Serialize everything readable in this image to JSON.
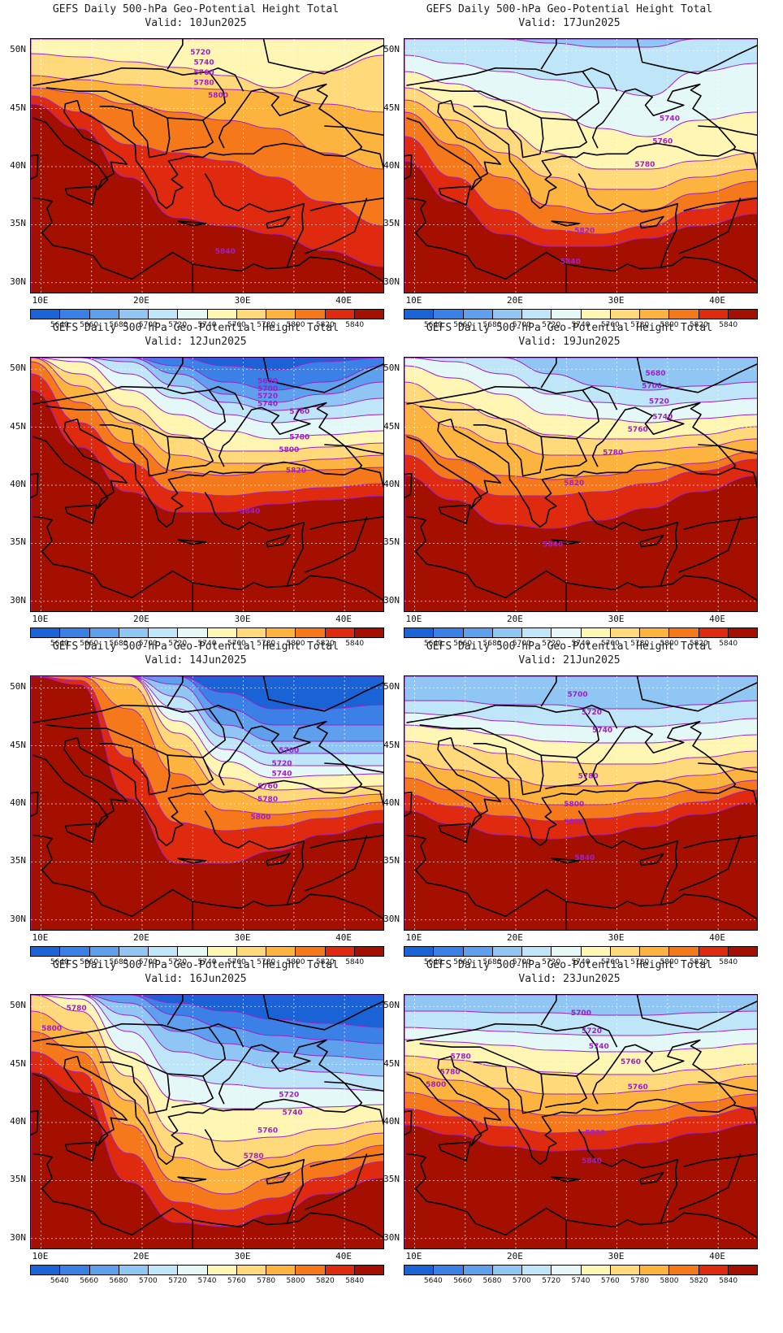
{
  "panels": [
    {
      "title": "GEFS Daily 500-hPa Geo-Potential Height Total",
      "valid": "Valid: 10Jun2025"
    },
    {
      "title": "GEFS Daily 500-hPa Geo-Potential Height Total",
      "valid": "Valid: 17Jun2025"
    },
    {
      "title": "GEFS Daily 500-hPa Geo-Potential Height Total",
      "valid": "Valid: 12Jun2025"
    },
    {
      "title": "GEFS Daily 500-hPa Geo-Potential Height Total",
      "valid": "Valid: 19Jun2025"
    },
    {
      "title": "GEFS Daily 500-hPa Geo-Potential Height Total",
      "valid": "Valid: 14Jun2025"
    },
    {
      "title": "GEFS Daily 500-hPa Geo-Potential Height Total",
      "valid": "Valid: 21Jun2025"
    },
    {
      "title": "GEFS Daily 500-hPa Geo-Potential Height Total",
      "valid": "Valid: 16Jun2025"
    },
    {
      "title": "GEFS Daily 500-hPa Geo-Potential Height Total",
      "valid": "Valid: 23Jun2025"
    }
  ],
  "lat_labels": [
    "50N",
    "45N",
    "40N",
    "35N",
    "30N"
  ],
  "lon_labels": [
    "10E",
    "20E",
    "30E",
    "40E"
  ],
  "colorbar": {
    "labels": [
      "5640",
      "5660",
      "5680",
      "5700",
      "5720",
      "5740",
      "5760",
      "5780",
      "5800",
      "5820",
      "5840"
    ],
    "colors": [
      "#1a63d6",
      "#3a80e6",
      "#5fa0ee",
      "#8fc6f4",
      "#bfe6f8",
      "#e5f8f8",
      "#fff6b4",
      "#ffd97a",
      "#fdb43e",
      "#f5781b",
      "#e02a10",
      "#a50f00"
    ]
  },
  "contour_color": "#a020c8",
  "contour_labels": {
    "p0": [
      "5720",
      "5740",
      "5760",
      "5780",
      "5800",
      "5840"
    ],
    "p1": [
      "5740",
      "5760",
      "5780",
      "5820",
      "5840"
    ],
    "p2": [
      "5680",
      "5700",
      "5720",
      "5740",
      "5760",
      "5780",
      "5800",
      "5820",
      "5840"
    ],
    "p3": [
      "5680",
      "5700",
      "5720",
      "5740",
      "5760",
      "5780",
      "5820",
      "5840"
    ],
    "p4": [
      "5700",
      "5720",
      "5740",
      "5760",
      "5780",
      "5800"
    ],
    "p5": [
      "5700",
      "5720",
      "5740",
      "5780",
      "5800",
      "5820",
      "5840"
    ],
    "p6": [
      "5780",
      "5800",
      "5720",
      "5740",
      "5760",
      "5780"
    ],
    "p7": [
      "5700",
      "5720",
      "5740",
      "5760",
      "5780",
      "5760",
      "5780",
      "5800",
      "5820",
      "5840"
    ]
  }
}
